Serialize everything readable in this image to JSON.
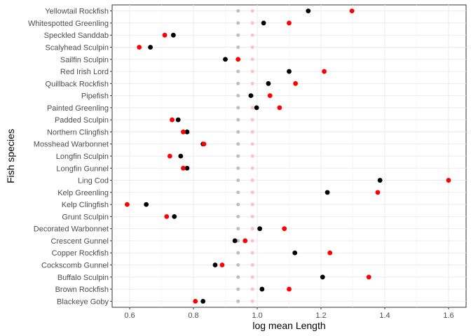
{
  "chart_data": {
    "type": "scatter",
    "xlabel": "log mean Length",
    "ylabel": "Fish species",
    "xlim": [
      0.545,
      1.655
    ],
    "xticks": [
      0.6,
      0.8,
      1.0,
      1.2,
      1.4,
      1.6
    ],
    "xtick_labels": [
      "0.6",
      "0.8",
      "1.0",
      "1.2",
      "1.4",
      "1.6"
    ],
    "grid": true,
    "categories": [
      "Yellowtail Rockfish",
      "Whitespotted Greenling",
      "Speckled Sanddab",
      "Scalyhead Sculpin",
      "Sailfin Sculpin",
      "Red Irish Lord",
      "Quillback Rockfish",
      "Pipefish",
      "Painted Greenling",
      "Padded Sculpin",
      "Northern Clingfish",
      "Mosshead Warbonnet",
      "Longfin Sculpin",
      "Longfin Gunnel",
      "Ling Cod",
      "Kelp Greenling",
      "Kelp Clingfish",
      "Grunt Sculpin",
      "Decorated Warbonnet",
      "Crescent Gunnel",
      "Copper Rockfish",
      "Cockscomb Gunnel",
      "Buffalo Sculpin",
      "Brown Rockfish",
      "Blackeye Goby"
    ],
    "series": [
      {
        "color": "#bebebe",
        "values": [
          0.94,
          0.94,
          0.94,
          0.94,
          0.94,
          0.94,
          0.94,
          0.94,
          0.94,
          0.94,
          0.94,
          0.94,
          0.94,
          0.94,
          0.94,
          0.94,
          0.94,
          0.94,
          0.94,
          0.94,
          0.94,
          0.94,
          0.94,
          0.94,
          0.94
        ]
      },
      {
        "color": "#ffc0cb",
        "values": [
          0.985,
          0.985,
          0.985,
          0.985,
          0.985,
          0.985,
          0.985,
          0.985,
          0.985,
          0.985,
          0.985,
          0.985,
          0.985,
          0.985,
          0.985,
          0.985,
          0.985,
          0.985,
          0.985,
          0.985,
          0.985,
          0.985,
          0.985,
          0.985,
          0.985
        ]
      },
      {
        "color": "#000000",
        "values": [
          1.16,
          1.02,
          0.737,
          0.665,
          0.9,
          1.1,
          1.035,
          0.98,
          0.998,
          0.752,
          0.78,
          0.83,
          0.76,
          0.78,
          1.385,
          1.22,
          0.652,
          0.74,
          1.008,
          0.93,
          1.118,
          0.868,
          1.205,
          1.015,
          0.83
        ]
      },
      {
        "color": "#ff0000",
        "values": [
          1.297,
          1.1,
          0.71,
          0.63,
          0.94,
          1.21,
          1.12,
          1.04,
          1.07,
          0.733,
          0.768,
          0.833,
          0.726,
          0.768,
          1.6,
          1.378,
          0.592,
          0.716,
          1.085,
          0.962,
          1.228,
          0.89,
          1.35,
          1.1,
          0.806
        ]
      }
    ]
  }
}
